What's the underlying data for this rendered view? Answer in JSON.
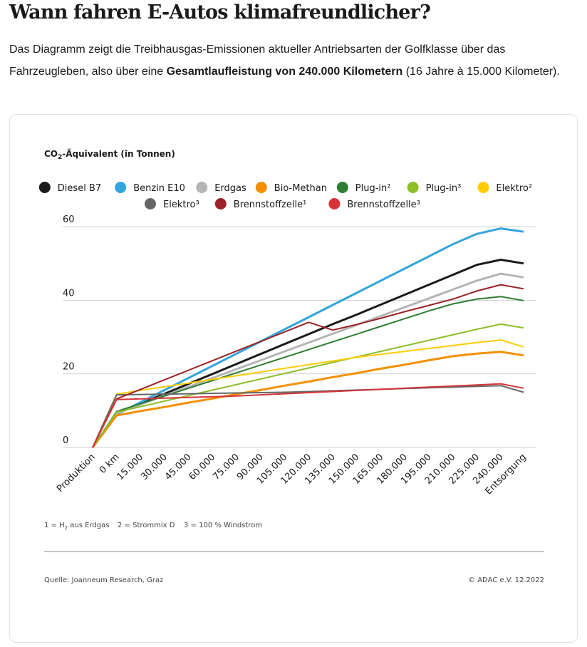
{
  "page": {
    "title": "Wann fahren E-Autos klimafreundlicher?",
    "intro_part1": "Das Diagramm zeigt die Treibhausgas-Emissionen aktueller Antriebsarten der Golfklasse über das Fahrzeugleben, also über eine ",
    "intro_bold": "Gesamtlaufleistung von 240.000 Kilometern",
    "intro_part2": " (16 Jahre à 15.000 Kilometer)."
  },
  "chart_data": {
    "type": "line",
    "ylabel_prefix": "CO",
    "ylabel_sub": "2",
    "ylabel_suffix": "-Äquivalent (in Tonnen)",
    "ylim": [
      0,
      60
    ],
    "yticks": [
      0,
      20,
      40,
      60
    ],
    "grid": true,
    "legend_position": "top-center",
    "categories": [
      "Produktion",
      "0 km",
      "15.000",
      "30.000",
      "45.000",
      "60.000",
      "75.000",
      "90.000",
      "105.000",
      "120.000",
      "135.000",
      "150.000",
      "165.000",
      "180.000",
      "195.000",
      "210.000",
      "225.000",
      "240.000",
      "Entsorgung"
    ],
    "series": [
      {
        "name": "Diesel B7",
        "color": "#1a1a1a",
        "width": 3,
        "values": [
          0,
          9.2,
          11.9,
          14.6,
          17.3,
          20.0,
          22.7,
          25.4,
          28.1,
          30.8,
          33.5,
          36.1,
          38.8,
          41.5,
          44.2,
          46.9,
          49.6,
          51.0,
          50.0
        ]
      },
      {
        "name": "Benzin E10",
        "color": "#33a5dd",
        "width": 3,
        "values": [
          0,
          9.0,
          12.3,
          15.6,
          18.9,
          22.2,
          25.5,
          28.8,
          32.1,
          35.4,
          38.7,
          42.0,
          45.3,
          48.6,
          51.9,
          55.2,
          58.0,
          59.5,
          58.6
        ]
      },
      {
        "name": "Erdgas",
        "color": "#b5b5b5",
        "width": 3,
        "values": [
          0,
          9.3,
          11.7,
          14.1,
          16.5,
          18.9,
          21.3,
          23.7,
          26.1,
          28.5,
          30.9,
          33.3,
          35.7,
          38.1,
          40.5,
          42.9,
          45.3,
          47.2,
          46.2
        ]
      },
      {
        "name": "Bio-Methan",
        "color": "#f39000",
        "width": 3,
        "values": [
          0,
          8.7,
          9.9,
          11.0,
          12.2,
          13.3,
          14.5,
          15.6,
          16.8,
          17.9,
          19.1,
          20.2,
          21.4,
          22.5,
          23.7,
          24.8,
          25.5,
          26.0,
          25.0
        ]
      },
      {
        "name": "Plug-in²",
        "color": "#2e7d32",
        "width": 2,
        "values": [
          0,
          9.8,
          11.9,
          14.0,
          16.1,
          18.2,
          20.3,
          22.4,
          24.5,
          26.6,
          28.7,
          30.8,
          32.9,
          35.0,
          37.1,
          39.0,
          40.3,
          41.0,
          39.9
        ]
      },
      {
        "name": "Plug-in³",
        "color": "#8dbf2a",
        "width": 2,
        "values": [
          0,
          9.6,
          11.1,
          12.6,
          14.1,
          15.6,
          17.1,
          18.6,
          20.1,
          21.6,
          23.1,
          24.6,
          26.1,
          27.6,
          29.1,
          30.6,
          32.1,
          33.5,
          32.5
        ]
      },
      {
        "name": "Elektro²",
        "color": "#ffcc00",
        "width": 2,
        "values": [
          0,
          14.5,
          15.5,
          16.5,
          17.5,
          18.5,
          19.5,
          20.5,
          21.5,
          22.5,
          23.5,
          24.5,
          25.3,
          26.1,
          26.9,
          27.7,
          28.5,
          29.2,
          27.3
        ]
      },
      {
        "name": "Elektro³",
        "color": "#666666",
        "width": 2,
        "values": [
          0,
          14.3,
          14.4,
          14.5,
          14.6,
          14.7,
          14.8,
          14.9,
          15.0,
          15.2,
          15.4,
          15.6,
          15.8,
          16.0,
          16.2,
          16.4,
          16.6,
          16.8,
          15.0
        ]
      },
      {
        "name": "Brennstoffzelle¹",
        "color": "#9b2226",
        "width": 2,
        "values": [
          0,
          13.2,
          15.8,
          18.4,
          21.0,
          23.6,
          26.2,
          28.8,
          31.4,
          34.0,
          31.9,
          33.4,
          35.1,
          36.9,
          38.6,
          40.3,
          42.5,
          44.2,
          43.1
        ]
      },
      {
        "name": "Brennstoffzelle³",
        "color": "#d6343a",
        "width": 2,
        "values": [
          0,
          13.0,
          13.2,
          13.4,
          13.6,
          13.8,
          14.0,
          14.3,
          14.6,
          14.9,
          15.2,
          15.5,
          15.8,
          16.1,
          16.4,
          16.7,
          17.0,
          17.3,
          16.1
        ]
      }
    ],
    "footnotes": [
      {
        "prefix": "1 = H",
        "sub": "2",
        "suffix": " aus Erdgas"
      },
      {
        "prefix": "2 = Strommix D",
        "sub": "",
        "suffix": ""
      },
      {
        "prefix": "3 = 100 % Windstrom",
        "sub": "",
        "suffix": ""
      }
    ],
    "source": "Quelle: Joanneum Research, Graz",
    "copyright": "© ADAC e.V. 12.2022"
  }
}
